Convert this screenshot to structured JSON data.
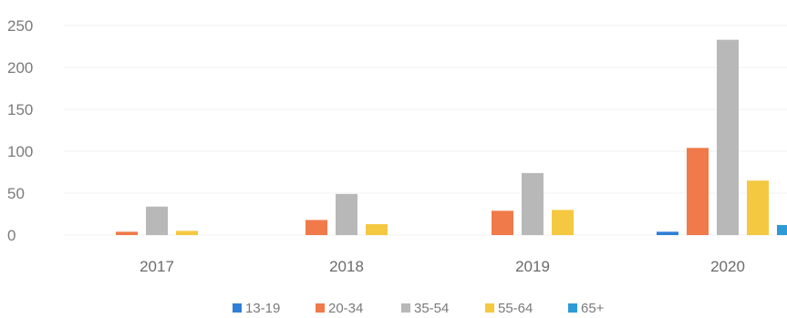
{
  "chart_data": {
    "type": "bar",
    "title": "",
    "xlabel": "",
    "ylabel": "",
    "ylim": [
      0,
      250
    ],
    "yticks": [
      0,
      50,
      100,
      150,
      200,
      250
    ],
    "grid": true,
    "legend_position": "bottom",
    "categories": [
      "2017",
      "2018",
      "2019",
      "2020"
    ],
    "series": [
      {
        "name": "13-19",
        "color": "#2f7fd6",
        "values": [
          0,
          0,
          0,
          4
        ]
      },
      {
        "name": "20-34",
        "color": "#f07a4a",
        "values": [
          4,
          18,
          29,
          104
        ]
      },
      {
        "name": "35-54",
        "color": "#b8b8b8",
        "values": [
          34,
          49,
          74,
          233
        ]
      },
      {
        "name": "55-64",
        "color": "#f5c842",
        "values": [
          5,
          13,
          30,
          65
        ]
      },
      {
        "name": "65+",
        "color": "#2e9bd6",
        "values": [
          0,
          0,
          0,
          12
        ]
      }
    ]
  }
}
